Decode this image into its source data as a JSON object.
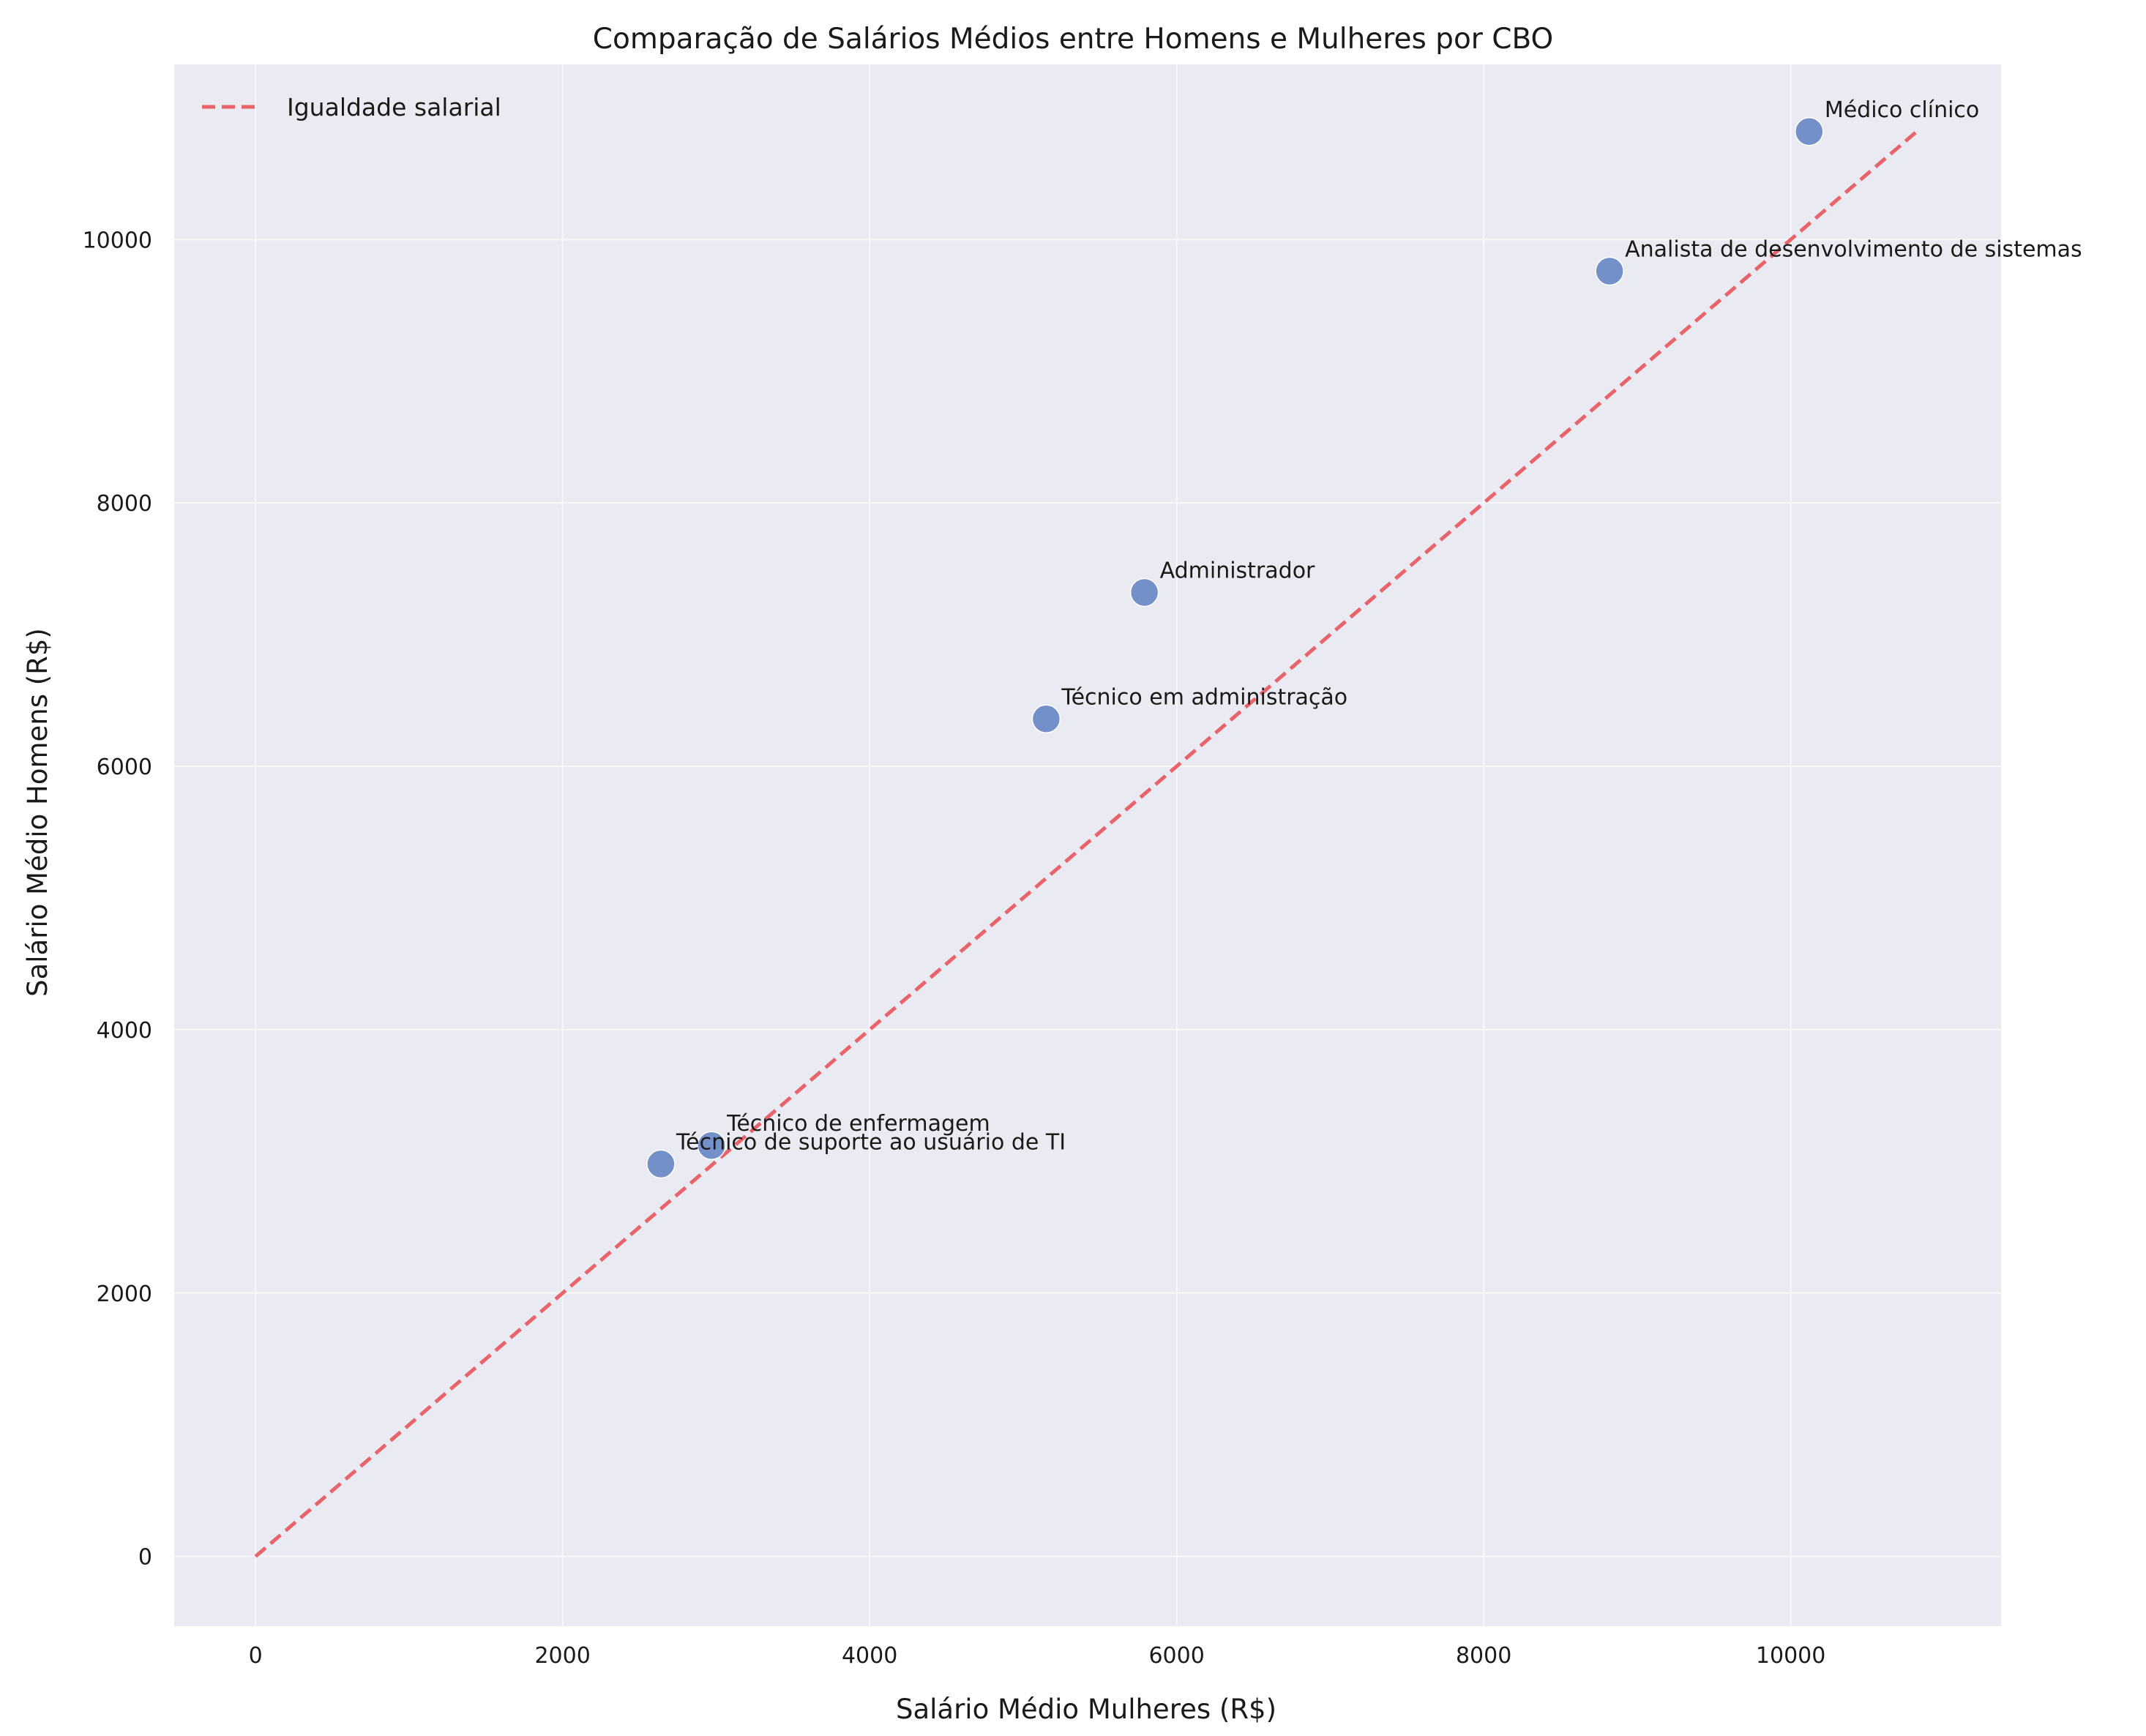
{
  "chart_data": {
    "type": "scatter",
    "title": "Comparação de Salários Médios entre Homens e Mulheres por CBO",
    "xlabel": "Salário Médio Mulheres (R$)",
    "ylabel": "Salário Médio Homens (R$)",
    "xlim": [
      -530,
      11370
    ],
    "ylim": [
      -530,
      11330
    ],
    "xticks": [
      0,
      2000,
      4000,
      6000,
      8000,
      10000
    ],
    "yticks": [
      0,
      2000,
      4000,
      6000,
      8000,
      10000
    ],
    "grid": true,
    "legend_position": "top-left",
    "points": [
      {
        "label": "Médico clínico",
        "x": 10120,
        "y": 10820
      },
      {
        "label": "Analista de desenvolvimento de sistemas",
        "x": 8820,
        "y": 9760
      },
      {
        "label": "Administrador",
        "x": 5790,
        "y": 7320
      },
      {
        "label": "Técnico em administração",
        "x": 5150,
        "y": 6360
      },
      {
        "label": "Técnico de enfermagem",
        "x": 2970,
        "y": 3120
      },
      {
        "label": "Técnico de suporte ao usuário de TI",
        "x": 2640,
        "y": 2980
      }
    ],
    "reference_line": {
      "name": "Igualdade salarial",
      "from": [
        0,
        0
      ],
      "to": [
        10820,
        10820
      ]
    },
    "colors": {
      "background": "#eaeaf2",
      "grid": "#f7f7fb",
      "points": "#5a7dbf",
      "reference_line": "#e8636a"
    }
  }
}
